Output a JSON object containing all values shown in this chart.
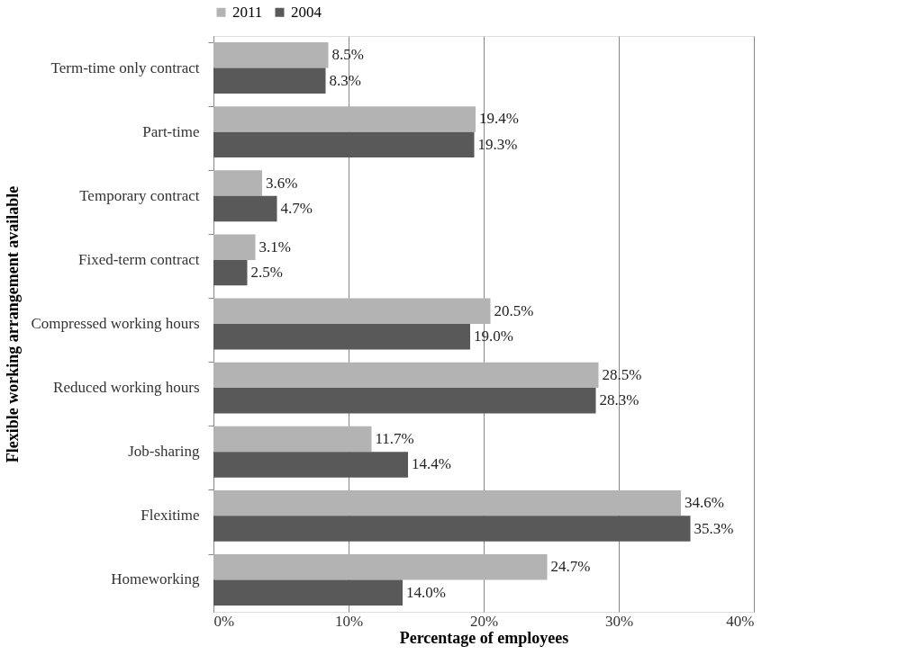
{
  "chart_data": {
    "type": "bar",
    "orientation": "horizontal",
    "xlabel": "Percentage of employees",
    "ylabel": "Flexible working arrangement available",
    "categories": [
      "Term-time only contract",
      "Part-time",
      "Temporary contract",
      "Fixed-term contract",
      "Compressed working hours",
      "Reduced working hours",
      "Job-sharing",
      "Flexitime",
      "Homeworking"
    ],
    "series": [
      {
        "name": "2011",
        "color": "#b3b3b3",
        "values": [
          8.5,
          19.4,
          3.6,
          3.1,
          20.5,
          28.5,
          11.7,
          34.6,
          24.7
        ],
        "value_labels": [
          "8.5%",
          "19.4%",
          "3.6%",
          "3.1%",
          "20.5%",
          "28.5%",
          "11.7%",
          "34.6%",
          "24.7%"
        ]
      },
      {
        "name": "2004",
        "color": "#595959",
        "values": [
          8.3,
          19.3,
          4.7,
          2.5,
          19.0,
          28.3,
          14.4,
          35.3,
          14.0
        ],
        "value_labels": [
          "8.3%",
          "19.3%",
          "4.7%",
          "2.5%",
          "19.0%",
          "28.3%",
          "14.4%",
          "35.3%",
          "14.0%"
        ]
      }
    ],
    "xlim": [
      0,
      40
    ],
    "xticks": [
      {
        "value": 0,
        "label": "0%"
      },
      {
        "value": 10,
        "label": "10%"
      },
      {
        "value": 20,
        "label": "20%"
      },
      {
        "value": 30,
        "label": "30%"
      },
      {
        "value": 40,
        "label": "40%"
      }
    ],
    "grid": "x",
    "legend": "top"
  }
}
